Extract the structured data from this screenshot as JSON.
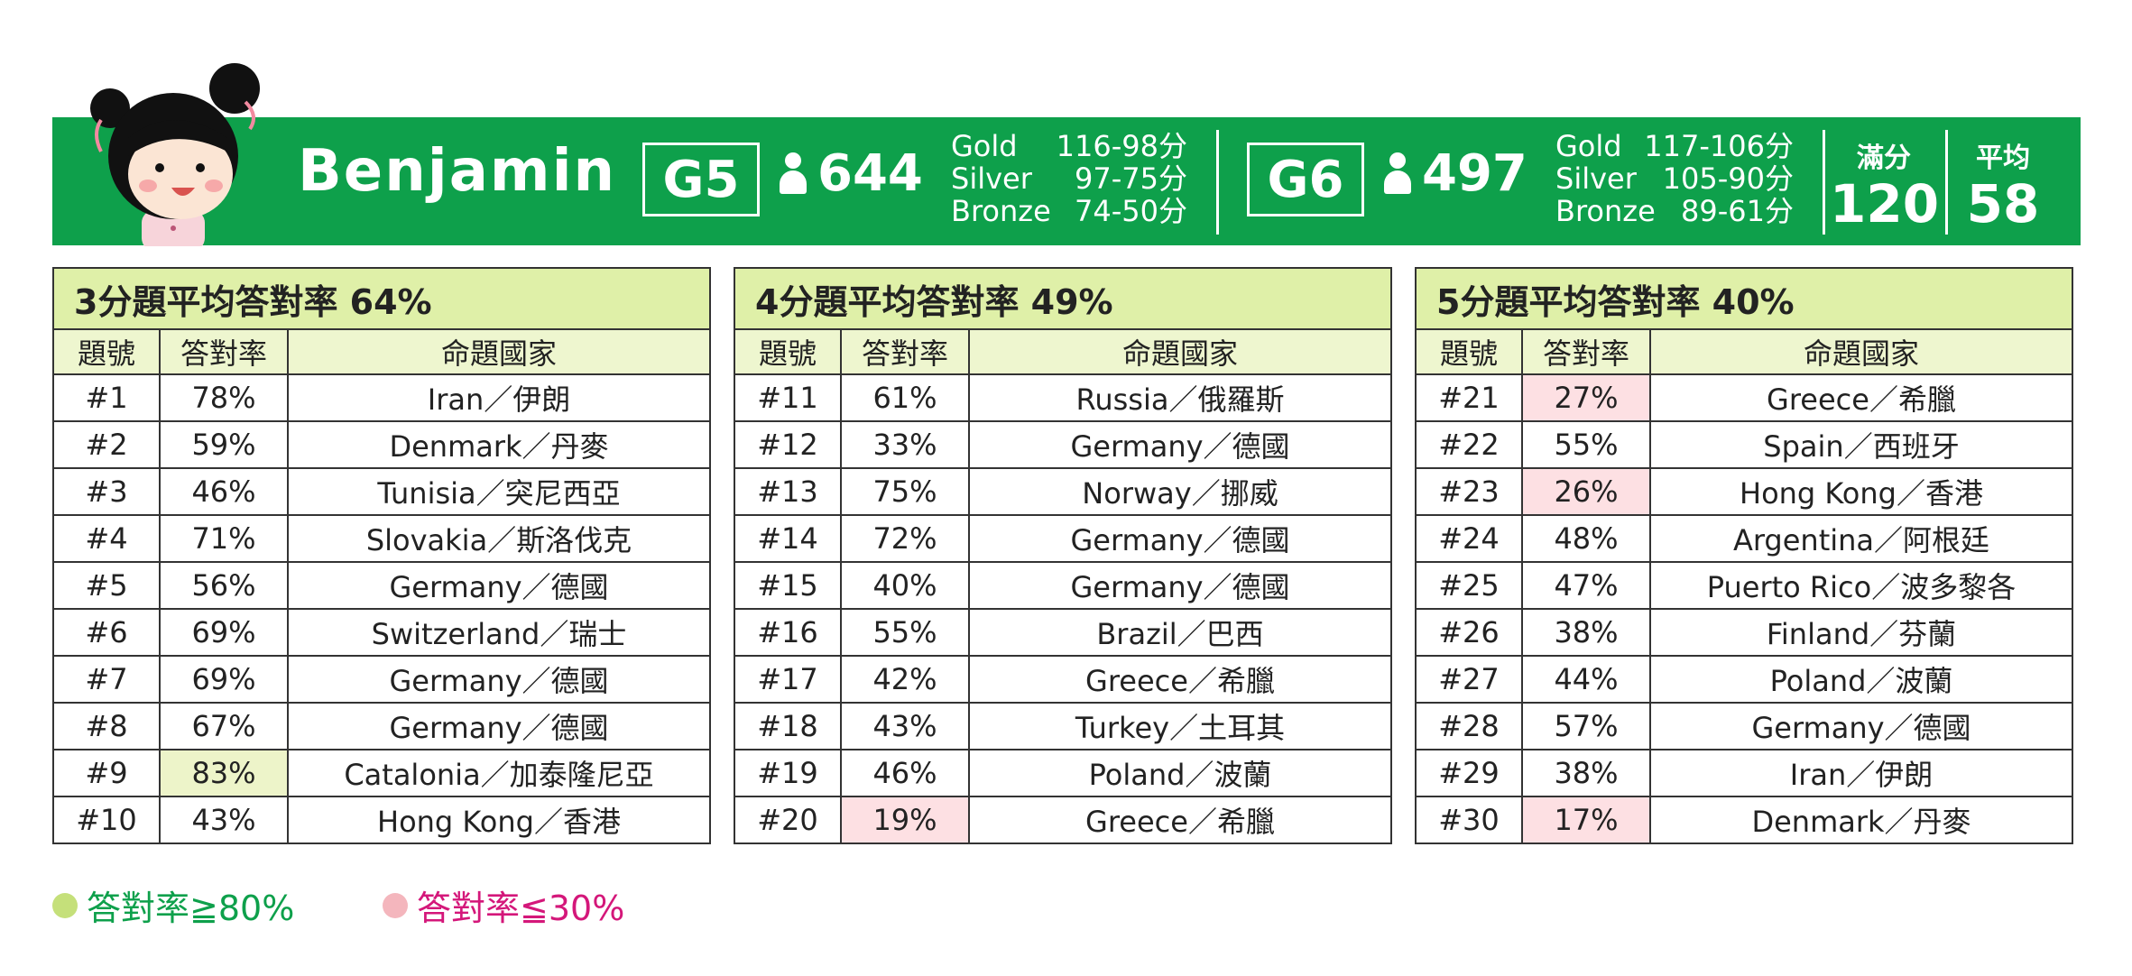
{
  "student_name": "Benjamin",
  "g5": {
    "label": "G5",
    "count": "644",
    "medals": [
      {
        "name": "Gold",
        "range": "116-98分"
      },
      {
        "name": "Silver",
        "range": "97-75分"
      },
      {
        "name": "Bronze",
        "range": "74-50分"
      }
    ]
  },
  "g6": {
    "label": "G6",
    "count": "497",
    "medals": [
      {
        "name": "Gold",
        "range": "117-106分"
      },
      {
        "name": "Silver",
        "range": "105-90分"
      },
      {
        "name": "Bronze",
        "range": "89-61分"
      }
    ]
  },
  "full_score": {
    "label": "滿分",
    "value": "120"
  },
  "average": {
    "label": "平均",
    "value": "58"
  },
  "headers": [
    "題號",
    "答對率",
    "命題國家"
  ],
  "tables": [
    {
      "title": "3分題平均答對率 64%",
      "rows": [
        {
          "no": "#1",
          "rate": "78%",
          "country": "Iran／伊朗"
        },
        {
          "no": "#2",
          "rate": "59%",
          "country": "Denmark／丹麥"
        },
        {
          "no": "#3",
          "rate": "46%",
          "country": "Tunisia／突尼西亞"
        },
        {
          "no": "#4",
          "rate": "71%",
          "country": "Slovakia／斯洛伐克"
        },
        {
          "no": "#5",
          "rate": "56%",
          "country": "Germany／德國"
        },
        {
          "no": "#6",
          "rate": "69%",
          "country": "Switzerland／瑞士"
        },
        {
          "no": "#7",
          "rate": "69%",
          "country": "Germany／德國"
        },
        {
          "no": "#8",
          "rate": "67%",
          "country": "Germany／德國"
        },
        {
          "no": "#9",
          "rate": "83%",
          "country": "Catalonia／加泰隆尼亞",
          "mark": "hi"
        },
        {
          "no": "#10",
          "rate": "43%",
          "country": "Hong Kong／香港"
        }
      ]
    },
    {
      "title": "4分題平均答對率 49%",
      "rows": [
        {
          "no": "#11",
          "rate": "61%",
          "country": "Russia／俄羅斯"
        },
        {
          "no": "#12",
          "rate": "33%",
          "country": "Germany／德國"
        },
        {
          "no": "#13",
          "rate": "75%",
          "country": "Norway／挪威"
        },
        {
          "no": "#14",
          "rate": "72%",
          "country": "Germany／德國"
        },
        {
          "no": "#15",
          "rate": "40%",
          "country": "Germany／德國"
        },
        {
          "no": "#16",
          "rate": "55%",
          "country": "Brazil／巴西"
        },
        {
          "no": "#17",
          "rate": "42%",
          "country": "Greece／希臘"
        },
        {
          "no": "#18",
          "rate": "43%",
          "country": "Turkey／土耳其"
        },
        {
          "no": "#19",
          "rate": "46%",
          "country": "Poland／波蘭"
        },
        {
          "no": "#20",
          "rate": "19%",
          "country": "Greece／希臘",
          "mark": "lo"
        }
      ]
    },
    {
      "title": "5分題平均答對率 40%",
      "rows": [
        {
          "no": "#21",
          "rate": "27%",
          "country": "Greece／希臘",
          "mark": "lo"
        },
        {
          "no": "#22",
          "rate": "55%",
          "country": "Spain／西班牙"
        },
        {
          "no": "#23",
          "rate": "26%",
          "country": "Hong Kong／香港",
          "mark": "lo"
        },
        {
          "no": "#24",
          "rate": "48%",
          "country": "Argentina／阿根廷"
        },
        {
          "no": "#25",
          "rate": "47%",
          "country": "Puerto Rico／波多黎各"
        },
        {
          "no": "#26",
          "rate": "38%",
          "country": "Finland／芬蘭"
        },
        {
          "no": "#27",
          "rate": "44%",
          "country": "Poland／波蘭"
        },
        {
          "no": "#28",
          "rate": "57%",
          "country": "Germany／德國"
        },
        {
          "no": "#29",
          "rate": "38%",
          "country": "Iran／伊朗"
        },
        {
          "no": "#30",
          "rate": "17%",
          "country": "Denmark／丹麥",
          "mark": "lo"
        }
      ]
    }
  ],
  "legend": [
    {
      "text": "答對率≧80%",
      "color": "#0ea04b",
      "dot": "#c5e07a"
    },
    {
      "text": "答對率≦30%",
      "color": "#d4177a",
      "dot": "#f4b6bd"
    }
  ],
  "colors": {
    "banner": "#0ea04b",
    "title_bg": "#dff0a8",
    "header_bg": "#eef6cf",
    "high": "#edf4c9",
    "low": "#fde0e3"
  }
}
